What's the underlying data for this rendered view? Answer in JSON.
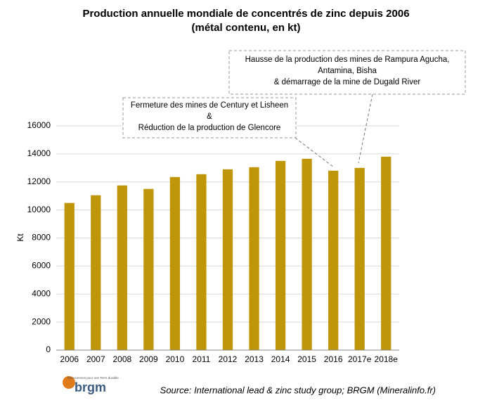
{
  "chart_data": {
    "type": "bar",
    "title": [
      "Production annuelle mondiale de concentrés de zinc depuis 2006",
      "(métal contenu, en kt)"
    ],
    "ylabel": "Kt",
    "categories": [
      "2006",
      "2007",
      "2008",
      "2009",
      "2010",
      "2011",
      "2012",
      "2013",
      "2014",
      "2015",
      "2016",
      "2017e",
      "2018e"
    ],
    "values": [
      10500,
      11050,
      11750,
      11500,
      12350,
      12550,
      12900,
      13050,
      13500,
      13650,
      12800,
      13000,
      13800
    ],
    "color": "#bf960a",
    "ylim": [
      0,
      16000
    ],
    "yticks": [
      0,
      2000,
      4000,
      6000,
      8000,
      10000,
      12000,
      14000,
      16000
    ],
    "grid": true,
    "annotations": [
      [
        "Fermeture des mines de Century et Lisheen",
        "&",
        "Réduction de la production de Glencore"
      ],
      [
        "Hausse de la production des mines de Rampura Agucha,",
        "Antamina,  Bisha",
        "& démarrage de la mine de Dugald River"
      ]
    ],
    "source": "Source: International lead & zinc study group; BRGM (Mineralinfo.fr)",
    "logo": {
      "name": "brgm",
      "tagline": "Géosciences pour une Terre durable"
    }
  }
}
